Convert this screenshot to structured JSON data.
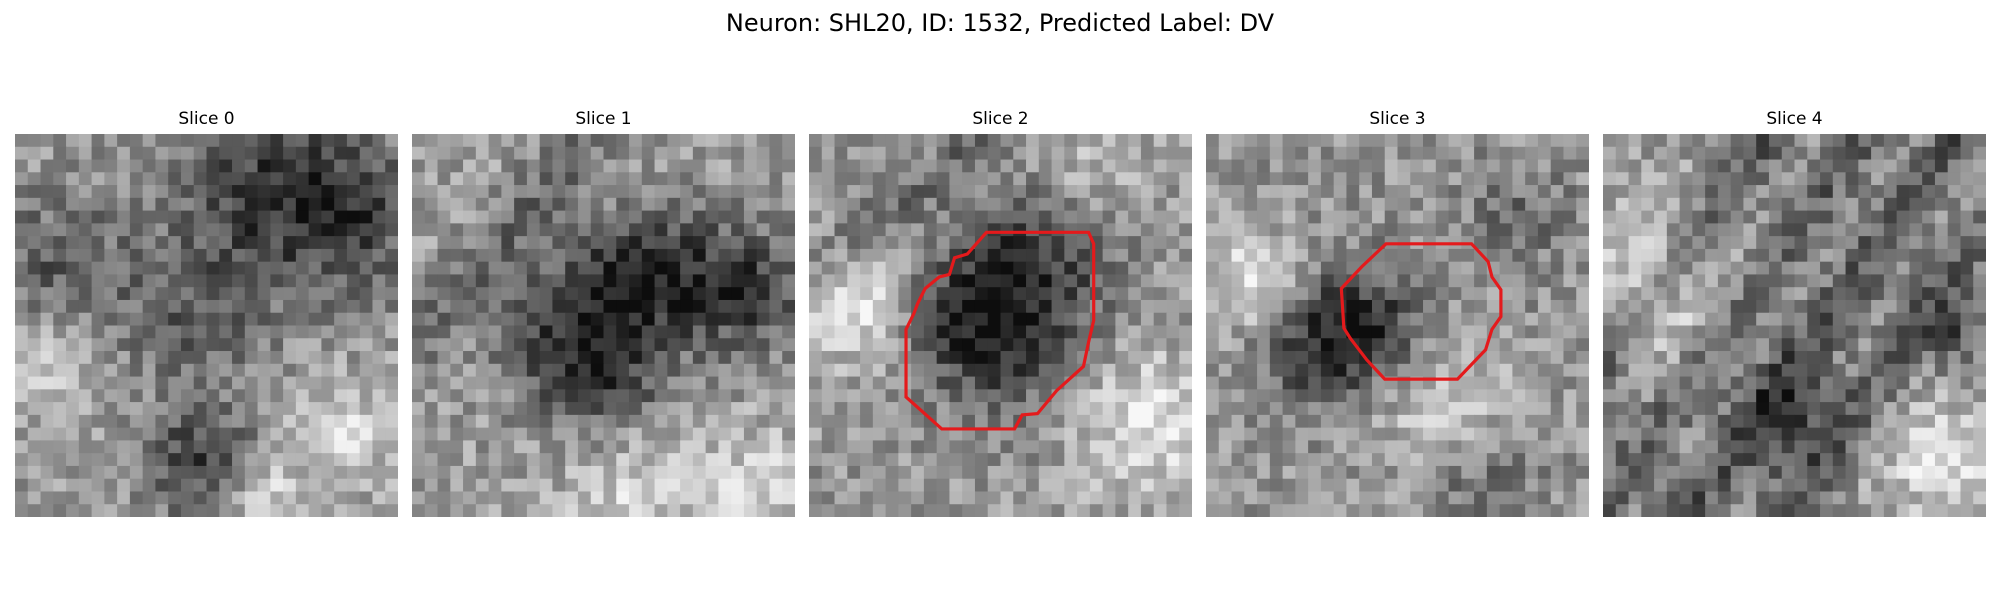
{
  "figure": {
    "title": "Neuron: SHL20, ID: 1532, Predicted Label: DV"
  },
  "panels": [
    {
      "label": "Slice 0",
      "has_outline": false
    },
    {
      "label": "Slice 1",
      "has_outline": false
    },
    {
      "label": "Slice 2",
      "has_outline": true
    },
    {
      "label": "Slice 3",
      "has_outline": true
    },
    {
      "label": "Slice 4",
      "has_outline": false
    }
  ],
  "colors": {
    "outline": "#e41a1c",
    "background": "#ffffff"
  }
}
